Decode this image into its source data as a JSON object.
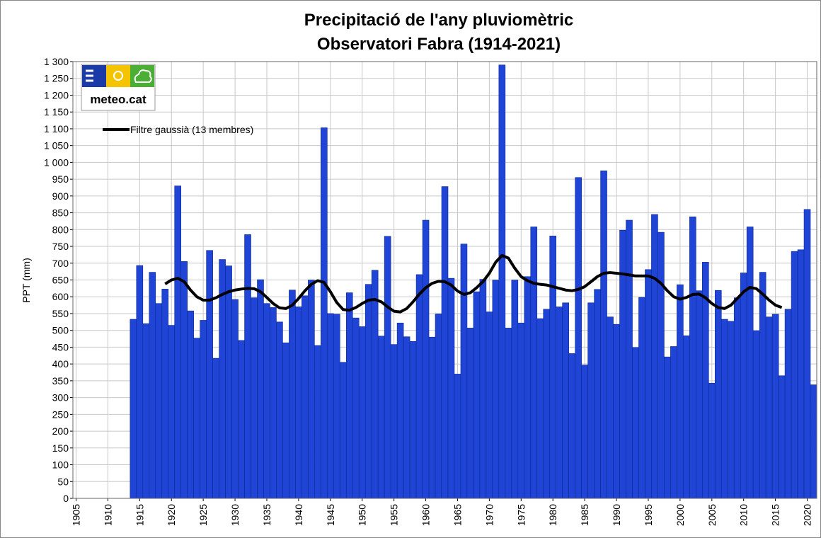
{
  "chart_data": {
    "type": "bar",
    "title": "Precipitació de l'any pluviomètric",
    "subtitle": "Observatori Fabra (1914-2021)",
    "y_label": "PPT (mm)",
    "x": [
      1914,
      1915,
      1916,
      1917,
      1918,
      1919,
      1920,
      1921,
      1922,
      1923,
      1924,
      1925,
      1926,
      1927,
      1928,
      1929,
      1930,
      1931,
      1932,
      1933,
      1934,
      1935,
      1936,
      1937,
      1938,
      1939,
      1940,
      1941,
      1942,
      1943,
      1944,
      1945,
      1946,
      1947,
      1948,
      1949,
      1950,
      1951,
      1952,
      1953,
      1954,
      1955,
      1956,
      1957,
      1958,
      1959,
      1960,
      1961,
      1962,
      1963,
      1964,
      1965,
      1966,
      1967,
      1968,
      1969,
      1970,
      1971,
      1972,
      1973,
      1974,
      1975,
      1976,
      1977,
      1978,
      1979,
      1980,
      1981,
      1982,
      1983,
      1984,
      1985,
      1986,
      1987,
      1988,
      1989,
      1990,
      1991,
      1992,
      1993,
      1994,
      1995,
      1996,
      1997,
      1998,
      1999,
      2000,
      2001,
      2002,
      2003,
      2004,
      2005,
      2006,
      2007,
      2008,
      2009,
      2010,
      2011,
      2012,
      2013,
      2014,
      2015,
      2016,
      2017,
      2018,
      2019,
      2020,
      2021
    ],
    "values": [
      533,
      693,
      520,
      673,
      580,
      623,
      515,
      930,
      705,
      558,
      477,
      530,
      738,
      417,
      711,
      692,
      592,
      470,
      785,
      597,
      651,
      580,
      568,
      525,
      463,
      620,
      570,
      603,
      650,
      455,
      1103,
      550,
      548,
      405,
      612,
      537,
      511,
      637,
      679,
      483,
      780,
      458,
      522,
      481,
      467,
      666,
      828,
      480,
      549,
      928,
      655,
      370,
      757,
      507,
      615,
      652,
      555,
      650,
      1290,
      507,
      650,
      522,
      660,
      808,
      535,
      563,
      781,
      570,
      582,
      431,
      955,
      397,
      582,
      622,
      975,
      540,
      518,
      798,
      828,
      449,
      598,
      681,
      845,
      792,
      421,
      452,
      636,
      484,
      838,
      618,
      703,
      343,
      619,
      533,
      527,
      597,
      671,
      808,
      499,
      673,
      540,
      548,
      365,
      563,
      735,
      740,
      860,
      338
    ],
    "color": "#1f44d6",
    "line": {
      "name": "Filtre gaussià (13 membres)",
      "color": "#000000",
      "x": [
        1919,
        1920,
        1921,
        1922,
        1923,
        1924,
        1925,
        1926,
        1927,
        1928,
        1929,
        1930,
        1931,
        1932,
        1933,
        1934,
        1935,
        1936,
        1937,
        1938,
        1939,
        1940,
        1941,
        1942,
        1943,
        1944,
        1945,
        1946,
        1947,
        1948,
        1949,
        1950,
        1951,
        1952,
        1953,
        1954,
        1955,
        1956,
        1957,
        1958,
        1959,
        1960,
        1961,
        1962,
        1963,
        1964,
        1965,
        1966,
        1967,
        1968,
        1969,
        1970,
        1971,
        1972,
        1973,
        1974,
        1975,
        1976,
        1977,
        1978,
        1979,
        1980,
        1981,
        1982,
        1983,
        1984,
        1985,
        1986,
        1987,
        1988,
        1989,
        1990,
        1991,
        1992,
        1993,
        1994,
        1995,
        1996,
        1997,
        1998,
        1999,
        2000,
        2001,
        2002,
        2003,
        2004,
        2005,
        2006,
        2007,
        2008,
        2009,
        2010,
        2011,
        2012,
        2013,
        2014,
        2015,
        2016
      ],
      "values": [
        638,
        650,
        655,
        645,
        620,
        600,
        590,
        590,
        597,
        607,
        615,
        620,
        623,
        625,
        624,
        615,
        598,
        580,
        567,
        565,
        575,
        595,
        618,
        637,
        648,
        643,
        615,
        583,
        562,
        560,
        568,
        580,
        590,
        592,
        585,
        570,
        557,
        555,
        565,
        585,
        608,
        627,
        640,
        646,
        645,
        635,
        617,
        607,
        612,
        627,
        645,
        670,
        703,
        723,
        715,
        685,
        660,
        648,
        640,
        637,
        635,
        630,
        625,
        620,
        618,
        622,
        630,
        645,
        660,
        670,
        672,
        670,
        668,
        665,
        662,
        662,
        662,
        655,
        640,
        618,
        600,
        593,
        598,
        607,
        608,
        597,
        580,
        568,
        565,
        575,
        595,
        615,
        628,
        624,
        608,
        590,
        575,
        568
      ]
    },
    "xlim": [
      1904.5,
      2021.5
    ],
    "xticks": [
      1905,
      1910,
      1915,
      1920,
      1925,
      1930,
      1935,
      1940,
      1945,
      1950,
      1955,
      1960,
      1965,
      1970,
      1975,
      1980,
      1985,
      1990,
      1995,
      2000,
      2005,
      2010,
      2015,
      2020
    ],
    "ylim": [
      0,
      1300
    ],
    "yticks": [
      0,
      50,
      100,
      150,
      200,
      250,
      300,
      350,
      400,
      450,
      500,
      550,
      600,
      650,
      700,
      750,
      800,
      850,
      900,
      950,
      {
        "value": 1000,
        "label": "1 000"
      },
      {
        "value": 1050,
        "label": "1 050"
      },
      {
        "value": 1100,
        "label": "1 100"
      },
      {
        "value": 1150,
        "label": "1 150"
      },
      {
        "value": 1200,
        "label": "1 200"
      },
      {
        "value": 1250,
        "label": "1 250"
      },
      {
        "value": 1300,
        "label": "1 300"
      }
    ],
    "grid": true
  },
  "logo": {
    "text": "meteo.cat"
  }
}
